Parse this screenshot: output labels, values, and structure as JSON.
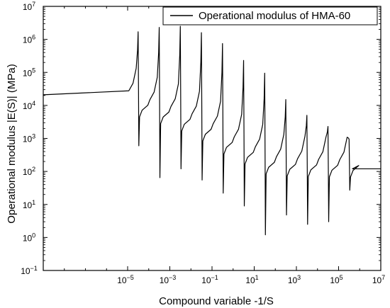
{
  "chart_data": {
    "type": "line",
    "title": "",
    "xlabel": "Compound variable -1/S",
    "ylabel": "Operational modulus |E(S)| (MPa)",
    "x_scale": "log",
    "y_scale": "log",
    "xlim": [
      1e-09,
      10000000.0
    ],
    "ylim": [
      0.1,
      10000000.0
    ],
    "x_tick_exponents": [
      -5,
      -3,
      -1,
      1,
      3,
      5,
      7
    ],
    "y_tick_exponents": [
      -1,
      0,
      1,
      2,
      3,
      4,
      5,
      6,
      7
    ],
    "grid": false,
    "legend_position": "top-right",
    "series": [
      {
        "name": "Operational modulus of HMA-60",
        "color": "#000000",
        "baseline_left": 21000,
        "baseline_right": 120,
        "resonances": [
          {
            "x": 3.2e-05,
            "peak": 1700000.0,
            "trough": 600,
            "after": 8000
          },
          {
            "x": 0.00032,
            "peak": 2300000.0,
            "trough": 65,
            "after": 5000
          },
          {
            "x": 0.0032,
            "peak": 2500000.0,
            "trough": 120,
            "after": 3000
          },
          {
            "x": 0.032,
            "peak": 1600000.0,
            "trough": 55,
            "after": 1500
          },
          {
            "x": 0.32,
            "peak": 750000.0,
            "trough": 22,
            "after": 600
          },
          {
            "x": 3.2,
            "peak": 230000.0,
            "trough": 9,
            "after": 300
          },
          {
            "x": 32,
            "peak": 95000.0,
            "trough": 1.2,
            "after": 150
          },
          {
            "x": 320,
            "peak": 15000.0,
            "trough": 4.8,
            "after": 130
          },
          {
            "x": 3200,
            "peak": 5000,
            "trough": 2.5,
            "after": 125
          },
          {
            "x": 32000,
            "peak": 2300,
            "trough": 3,
            "after": 122
          },
          {
            "x": 320000,
            "peak": 950,
            "trough": 27,
            "after": 120
          }
        ]
      }
    ]
  }
}
